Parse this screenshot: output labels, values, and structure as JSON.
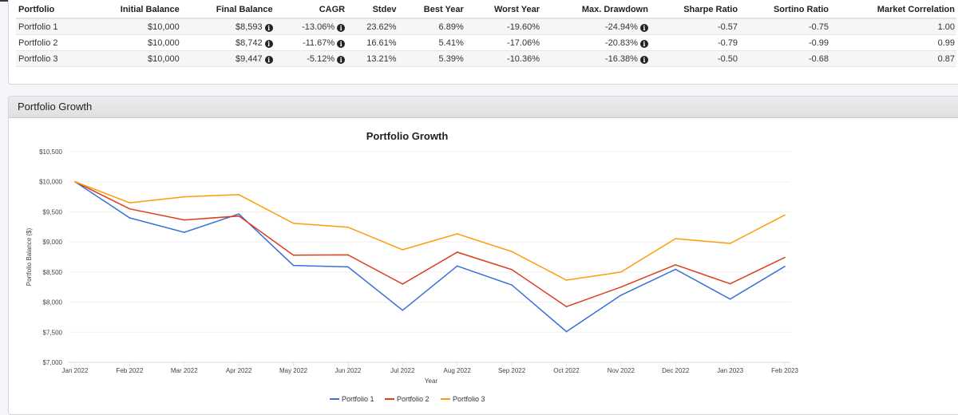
{
  "summary_table": {
    "headers": [
      "Portfolio",
      "Initial Balance",
      "Final Balance",
      "CAGR",
      "Stdev",
      "Best Year",
      "Worst Year",
      "Max. Drawdown",
      "Sharpe Ratio",
      "Sortino Ratio",
      "Market Correlation"
    ],
    "rows": [
      [
        "Portfolio 1",
        "$10,000",
        "$8,593",
        "-13.06%",
        "23.62%",
        "6.89%",
        "-19.60%",
        "-24.94%",
        "-0.57",
        "-0.75",
        "1.00"
      ],
      [
        "Portfolio 2",
        "$10,000",
        "$8,742",
        "-11.67%",
        "16.61%",
        "5.41%",
        "-17.06%",
        "-20.83%",
        "-0.79",
        "-0.99",
        "0.99"
      ],
      [
        "Portfolio 3",
        "$10,000",
        "$9,447",
        "-5.12%",
        "13.21%",
        "5.39%",
        "-10.36%",
        "-16.38%",
        "-0.50",
        "-0.68",
        "0.87"
      ]
    ],
    "info_icon": "info-circle-icon"
  },
  "panel": {
    "title": "Portfolio Growth"
  },
  "chart_data": {
    "type": "line",
    "title": "Portfolio Growth",
    "xlabel": "Year",
    "ylabel": "Portfolio Balance ($)",
    "ylim": [
      7000,
      10500
    ],
    "yticks": [
      {
        "value": 10500,
        "label": "$10,500"
      },
      {
        "value": 10000,
        "label": "$10,000"
      },
      {
        "value": 9500,
        "label": "$9,500"
      },
      {
        "value": 9000,
        "label": "$9,000"
      },
      {
        "value": 8500,
        "label": "$8,500"
      },
      {
        "value": 8000,
        "label": "$8,000"
      },
      {
        "value": 7500,
        "label": "$7,500"
      },
      {
        "value": 7000,
        "label": "$7,000"
      }
    ],
    "categories": [
      "Jan 2022",
      "Feb 2022",
      "Mar 2022",
      "Apr 2022",
      "May 2022",
      "Jun 2022",
      "Jul 2022",
      "Aug 2022",
      "Sep 2022",
      "Oct 2022",
      "Nov 2022",
      "Dec 2022",
      "Jan 2023",
      "Feb 2023"
    ],
    "grid": true,
    "legend_position": "bottom",
    "series": [
      {
        "name": "Portfolio 1",
        "color": "#3a6fd8",
        "values": [
          10000,
          9400,
          9160,
          9465,
          8610,
          8585,
          7865,
          8600,
          8285,
          7510,
          8115,
          8545,
          8050,
          8593
        ]
      },
      {
        "name": "Portfolio 2",
        "color": "#dc3e1e",
        "values": [
          10000,
          9550,
          9365,
          9430,
          8780,
          8785,
          8300,
          8830,
          8540,
          7925,
          8250,
          8620,
          8305,
          8742
        ]
      },
      {
        "name": "Portfolio 3",
        "color": "#ff9c0a",
        "values": [
          10000,
          9650,
          9750,
          9785,
          9310,
          9245,
          8870,
          9135,
          8840,
          8365,
          8500,
          9055,
          8975,
          9447
        ]
      }
    ]
  }
}
